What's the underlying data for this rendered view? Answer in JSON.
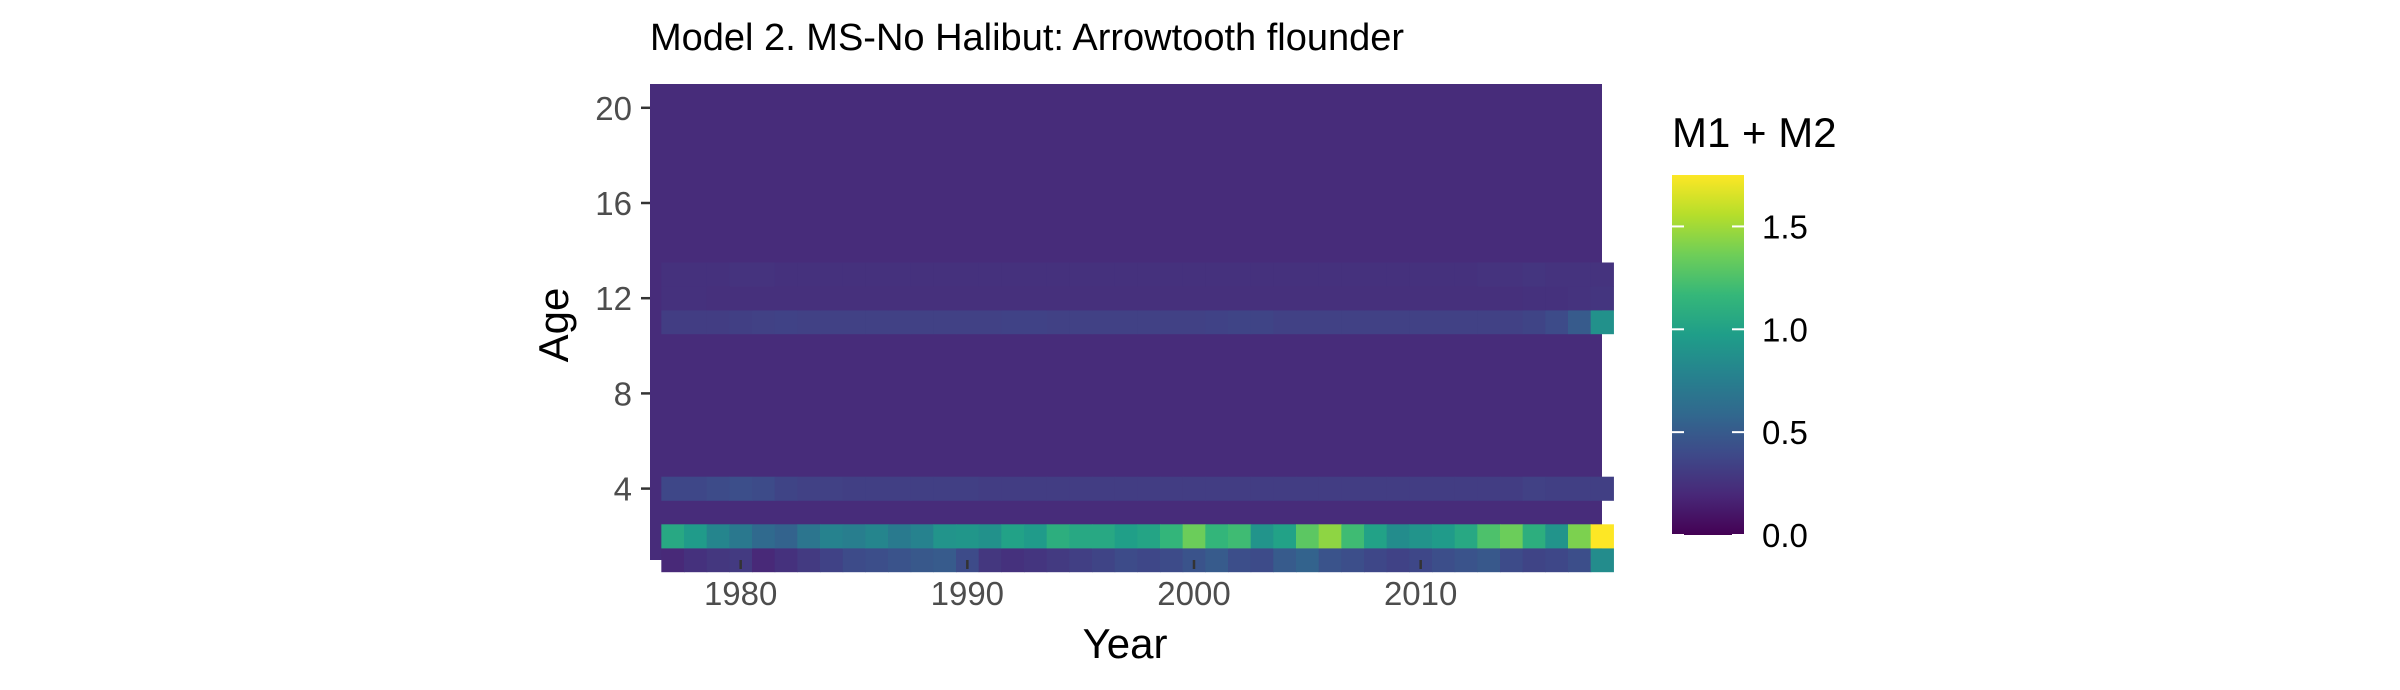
{
  "chart_data": {
    "type": "heatmap",
    "title": "Model 2. MS-No Halibut: Arrowtooth flounder",
    "xlabel": "Year",
    "ylabel": "Age",
    "x_range": [
      1976,
      2018
    ],
    "y_range": [
      1,
      21
    ],
    "x_ticks": [
      1980,
      1990,
      2000,
      2010
    ],
    "y_ticks": [
      4,
      8,
      12,
      16,
      20
    ],
    "x_tick_labels": [
      "1980",
      "1990",
      "2000",
      "2010"
    ],
    "y_tick_labels": [
      "4",
      "8",
      "12",
      "16",
      "20"
    ],
    "legend": {
      "title": "M1 + M2",
      "position": "right",
      "range": [
        0.0,
        1.75
      ],
      "ticks": [
        0.0,
        0.5,
        1.0,
        1.5
      ],
      "tick_labels": [
        "0.0",
        "0.5",
        "1.0",
        "1.5"
      ],
      "colormap": "viridis",
      "colors": [
        "#440154",
        "#482878",
        "#3e4989",
        "#31688e",
        "#26828e",
        "#1f9e89",
        "#35b779",
        "#6ece58",
        "#b5de2b",
        "#fde725"
      ]
    },
    "years_first": 1977,
    "years_last": 2018,
    "background_value": 0.22,
    "rows": [
      {
        "age": 1,
        "values": [
          0.2,
          0.25,
          0.28,
          0.3,
          0.2,
          0.25,
          0.3,
          0.35,
          0.4,
          0.42,
          0.45,
          0.48,
          0.5,
          0.4,
          0.28,
          0.25,
          0.27,
          0.3,
          0.33,
          0.36,
          0.4,
          0.38,
          0.4,
          0.45,
          0.5,
          0.42,
          0.4,
          0.5,
          0.55,
          0.45,
          0.42,
          0.38,
          0.35,
          0.38,
          0.42,
          0.45,
          0.48,
          0.4,
          0.36,
          0.38,
          0.42,
          0.85
        ]
      },
      {
        "age": 2,
        "values": [
          1.05,
          0.95,
          0.8,
          0.7,
          0.6,
          0.55,
          0.68,
          0.78,
          0.75,
          0.8,
          0.72,
          0.78,
          0.9,
          0.92,
          0.88,
          1.0,
          0.95,
          1.1,
          1.05,
          1.05,
          0.98,
          1.02,
          1.15,
          1.35,
          1.15,
          1.2,
          0.9,
          1.0,
          1.3,
          1.45,
          1.2,
          1.0,
          0.85,
          0.9,
          0.95,
          1.05,
          1.25,
          1.35,
          1.1,
          0.9,
          1.4,
          1.75
        ]
      },
      {
        "age": 4,
        "values": [
          0.38,
          0.38,
          0.4,
          0.42,
          0.4,
          0.36,
          0.34,
          0.34,
          0.33,
          0.33,
          0.33,
          0.33,
          0.33,
          0.33,
          0.32,
          0.32,
          0.32,
          0.32,
          0.32,
          0.32,
          0.32,
          0.32,
          0.32,
          0.32,
          0.32,
          0.32,
          0.32,
          0.32,
          0.32,
          0.32,
          0.32,
          0.32,
          0.32,
          0.32,
          0.32,
          0.32,
          0.32,
          0.32,
          0.34,
          0.33,
          0.33,
          0.33
        ]
      },
      {
        "age": 11,
        "values": [
          0.32,
          0.32,
          0.32,
          0.33,
          0.34,
          0.35,
          0.34,
          0.34,
          0.34,
          0.34,
          0.34,
          0.34,
          0.34,
          0.34,
          0.34,
          0.35,
          0.35,
          0.34,
          0.34,
          0.34,
          0.34,
          0.34,
          0.34,
          0.34,
          0.35,
          0.36,
          0.36,
          0.34,
          0.34,
          0.34,
          0.34,
          0.34,
          0.34,
          0.34,
          0.34,
          0.34,
          0.34,
          0.34,
          0.36,
          0.4,
          0.5,
          0.88
        ]
      },
      {
        "age": 12,
        "values": [
          0.25,
          0.25,
          0.24,
          0.24,
          0.24,
          0.24,
          0.24,
          0.24,
          0.24,
          0.24,
          0.24,
          0.24,
          0.24,
          0.24,
          0.24,
          0.24,
          0.24,
          0.24,
          0.24,
          0.24,
          0.24,
          0.24,
          0.24,
          0.24,
          0.24,
          0.24,
          0.24,
          0.24,
          0.24,
          0.24,
          0.24,
          0.24,
          0.24,
          0.24,
          0.24,
          0.24,
          0.24,
          0.24,
          0.25,
          0.25,
          0.26,
          0.27
        ]
      },
      {
        "age": 13,
        "values": [
          0.25,
          0.25,
          0.25,
          0.26,
          0.26,
          0.25,
          0.25,
          0.25,
          0.25,
          0.25,
          0.25,
          0.25,
          0.25,
          0.25,
          0.25,
          0.25,
          0.25,
          0.25,
          0.25,
          0.25,
          0.25,
          0.25,
          0.25,
          0.25,
          0.25,
          0.25,
          0.25,
          0.25,
          0.25,
          0.25,
          0.25,
          0.25,
          0.25,
          0.25,
          0.25,
          0.25,
          0.26,
          0.26,
          0.27,
          0.26,
          0.26,
          0.26
        ]
      }
    ]
  }
}
